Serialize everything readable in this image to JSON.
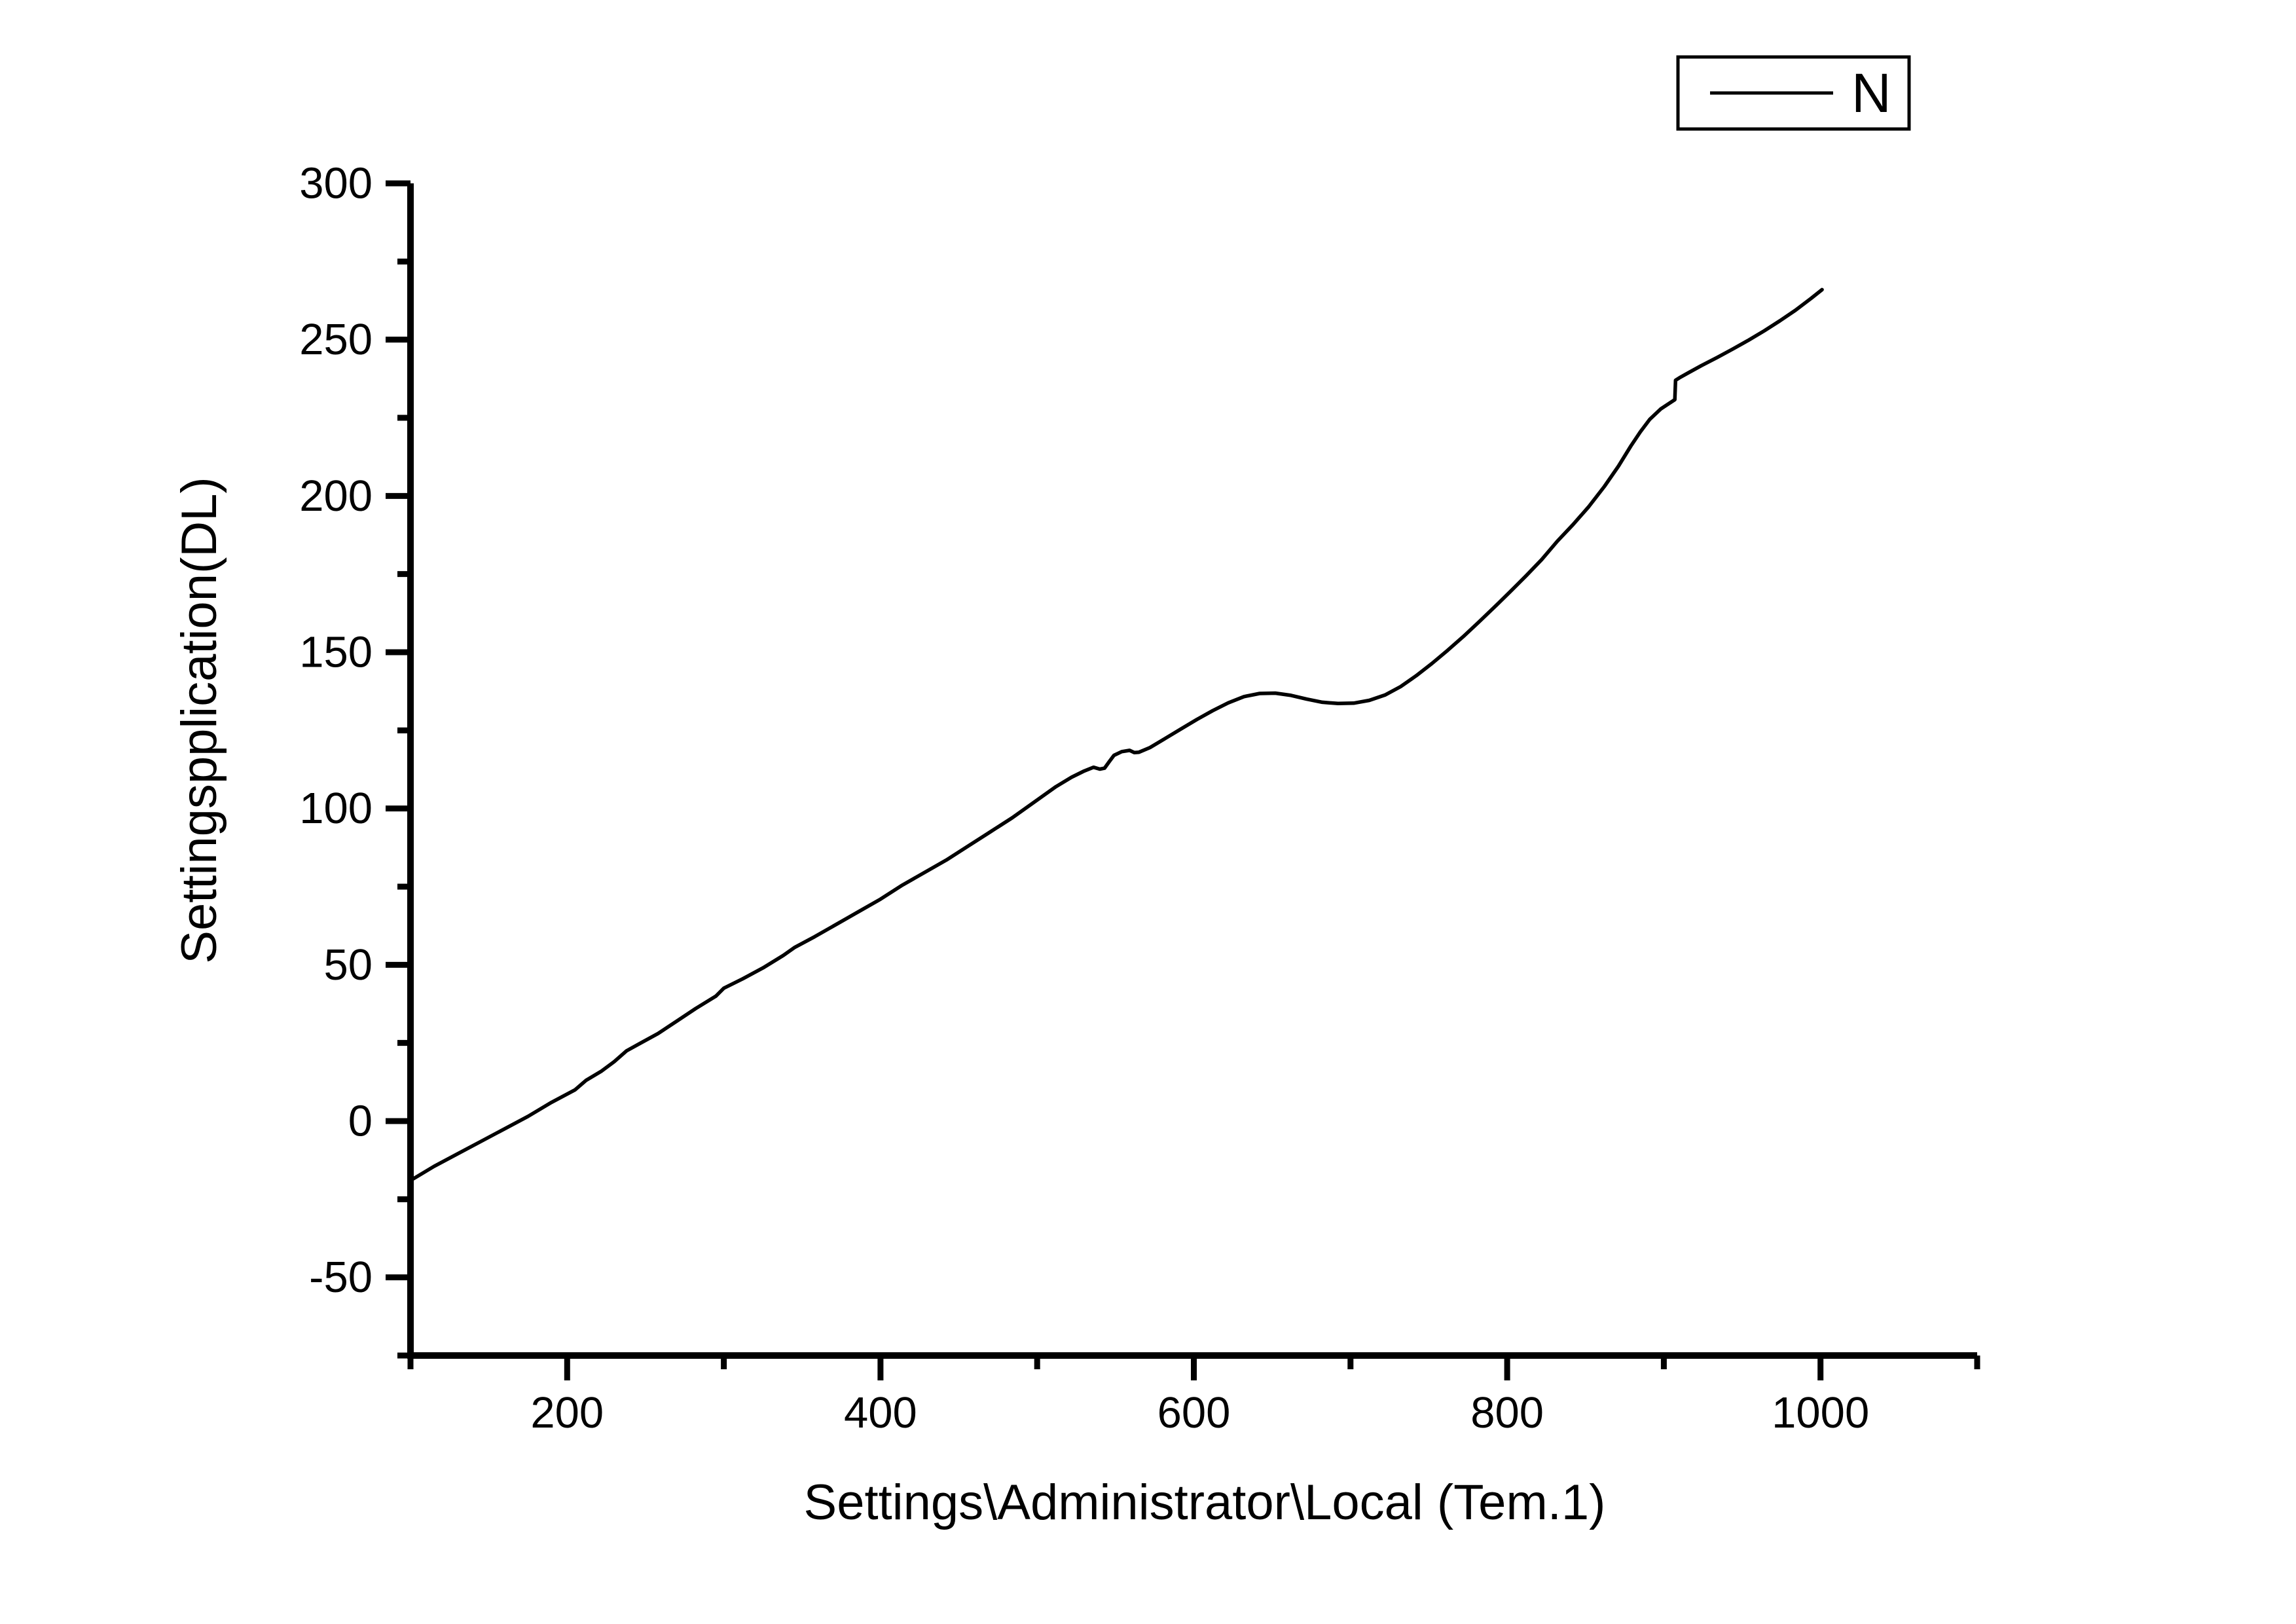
{
  "colors": {
    "line": "#000000",
    "axis": "#000000",
    "background": "#ffffff",
    "text": "#000000"
  },
  "legend": {
    "label": "N"
  },
  "chart_data": {
    "type": "line",
    "title": "",
    "xlabel": "Settings\\Administrator\\Local (Tem.1)",
    "ylabel": "Settingspplication(DL)",
    "xlim": [
      100,
      1100
    ],
    "ylim": [
      -75,
      300
    ],
    "x_ticks": [
      200,
      400,
      600,
      800,
      1000
    ],
    "y_ticks": [
      -50,
      0,
      50,
      100,
      150,
      200,
      250,
      300
    ],
    "x_minor_step": 100,
    "y_minor_step": 25,
    "grid": false,
    "legend_position": "top-right",
    "series": [
      {
        "name": "N",
        "points": [
          [
            100,
            -19
          ],
          [
            115,
            -14.5
          ],
          [
            130,
            -10.5
          ],
          [
            145,
            -6.5
          ],
          [
            160,
            -2.5
          ],
          [
            175,
            1.5
          ],
          [
            190,
            6
          ],
          [
            205,
            10
          ],
          [
            212,
            13
          ],
          [
            222,
            16
          ],
          [
            230,
            19
          ],
          [
            238,
            22.5
          ],
          [
            247,
            25
          ],
          [
            258,
            28
          ],
          [
            270,
            32
          ],
          [
            282,
            36
          ],
          [
            295,
            40
          ],
          [
            300,
            42.5
          ],
          [
            312,
            45.5
          ],
          [
            325,
            49
          ],
          [
            338,
            53
          ],
          [
            345,
            55.5
          ],
          [
            358,
            59
          ],
          [
            372,
            63
          ],
          [
            386,
            67
          ],
          [
            400,
            71
          ],
          [
            414,
            75.5
          ],
          [
            428,
            79.5
          ],
          [
            442,
            83.5
          ],
          [
            456,
            88
          ],
          [
            470,
            92.5
          ],
          [
            484,
            97
          ],
          [
            498,
            102
          ],
          [
            512,
            107
          ],
          [
            522,
            110
          ],
          [
            530,
            112
          ],
          [
            536,
            113.2
          ],
          [
            540,
            112.6
          ],
          [
            543,
            112.9
          ],
          [
            546,
            115
          ],
          [
            549,
            117
          ],
          [
            554,
            118.2
          ],
          [
            559,
            118.6
          ],
          [
            562,
            117.9
          ],
          [
            565,
            118
          ],
          [
            572,
            119.5
          ],
          [
            582,
            122.5
          ],
          [
            592,
            125.5
          ],
          [
            602,
            128.5
          ],
          [
            612,
            131.3
          ],
          [
            622,
            133.8
          ],
          [
            632,
            135.8
          ],
          [
            642,
            136.8
          ],
          [
            652,
            136.9
          ],
          [
            662,
            136.2
          ],
          [
            672,
            135
          ],
          [
            682,
            134
          ],
          [
            692,
            133.6
          ],
          [
            702,
            133.7
          ],
          [
            712,
            134.6
          ],
          [
            722,
            136.3
          ],
          [
            732,
            139
          ],
          [
            742,
            142.5
          ],
          [
            752,
            146.4
          ],
          [
            762,
            150.6
          ],
          [
            772,
            155
          ],
          [
            782,
            159.7
          ],
          [
            792,
            164.5
          ],
          [
            802,
            169.4
          ],
          [
            812,
            174.4
          ],
          [
            822,
            179.6
          ],
          [
            832,
            185.5
          ],
          [
            842,
            190.8
          ],
          [
            852,
            196.5
          ],
          [
            862,
            203
          ],
          [
            871,
            209.5
          ],
          [
            879,
            216
          ],
          [
            885,
            220.5
          ],
          [
            891,
            224.5
          ],
          [
            898,
            227.8
          ],
          [
            904,
            229.8
          ],
          [
            907,
            230.8
          ],
          [
            907.5,
            237
          ],
          [
            910,
            237.8
          ],
          [
            916,
            239.5
          ],
          [
            924,
            241.7
          ],
          [
            934,
            244.3
          ],
          [
            944,
            247
          ],
          [
            954,
            249.8
          ],
          [
            964,
            252.8
          ],
          [
            974,
            256
          ],
          [
            984,
            259.4
          ],
          [
            994,
            263.2
          ],
          [
            1001,
            266
          ]
        ]
      }
    ]
  }
}
